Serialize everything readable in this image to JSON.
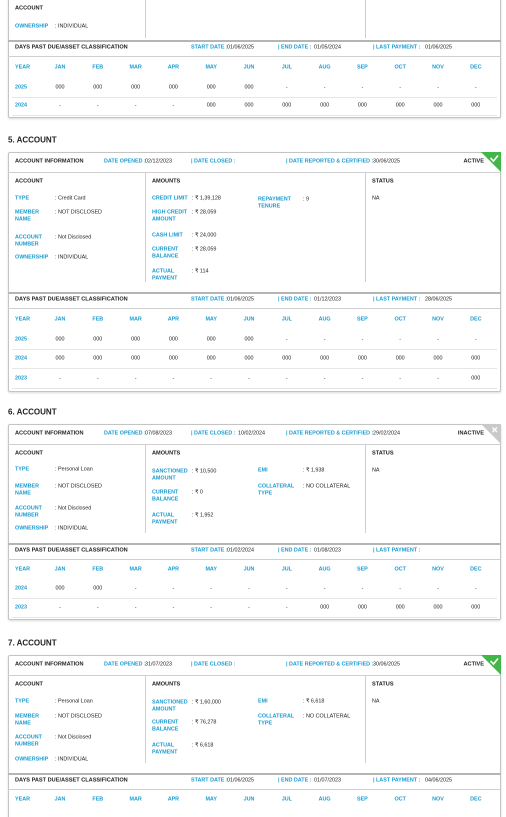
{
  "dpd_columns": [
    "YEAR",
    "JAN",
    "FEB",
    "MAR",
    "APR",
    "MAY",
    "JUN",
    "JUL",
    "AUG",
    "SEP",
    "OCT",
    "NOV",
    "DEC"
  ],
  "partial_account": {
    "columns": {
      "account": "ACCOUNT"
    },
    "account_fields": [
      {
        "label": "OWNERSHIP",
        "value": ": INDIVIDUAL"
      }
    ],
    "dpd": {
      "heading": "DAYS PAST DUE/ASSET CLASSIFICATION",
      "start_label": "START DATE :",
      "start": "01/06/2025",
      "end_label": "| END DATE :",
      "end": "01/05/2024",
      "last_label": "| LAST PAYMENT :",
      "last": "01/06/2025",
      "rows": [
        [
          "2025",
          "000",
          "000",
          "000",
          "000",
          "000",
          "000",
          "-",
          "-",
          "-",
          "-",
          "-",
          "-"
        ],
        [
          "2024",
          "-",
          "-",
          "-",
          "-",
          "000",
          "000",
          "000",
          "000",
          "000",
          "000",
          "000",
          "000"
        ]
      ]
    }
  },
  "accounts": [
    {
      "title": "5. ACCOUNT",
      "info": {
        "heading": "ACCOUNT INFORMATION",
        "opened_label": "DATE OPENED :",
        "opened": "02/12/2023",
        "closed_label": "| DATE CLOSED :",
        "reported_label": "| DATE REPORTED & CERTIFIED :",
        "reported": "30/06/2025",
        "badge": "ACTIVE"
      },
      "columns": {
        "account": "ACCOUNT",
        "amounts": "AMOUNTS",
        "status": "STATUS"
      },
      "account_fields": [
        {
          "label": "TYPE",
          "value": ": Credit Card"
        },
        {
          "label": "MEMBER\nNAME",
          "value": ": NOT DISCLOSED"
        },
        {
          "label": "ACCOUNT\nNUMBER",
          "value": ": Not Disclosed"
        },
        {
          "label": "OWNERSHIP",
          "value": ": INDIVIDUAL"
        }
      ],
      "amount_fields": [
        {
          "label": "CREDIT LIMIT",
          "value": ": ₹ 1,39,128"
        },
        {
          "label": "HIGH CREDIT\nAMOUNT",
          "value": ": ₹ 28,059"
        },
        {
          "label": "CASH LIMIT",
          "value": ": ₹ 24,000"
        },
        {
          "label": "CURRENT\nBALANCE",
          "value": ": ₹ 28,059"
        },
        {
          "label": "ACTUAL\nPAYMENT",
          "value": ": ₹ 114"
        }
      ],
      "side_fields": [
        {
          "label": "REPAYMENT\nTENURE",
          "value": ": 9"
        }
      ],
      "status": "NA",
      "dpd": {
        "heading": "DAYS PAST DUE/ASSET CLASSIFICATION",
        "start_label": "START DATE :",
        "start": "01/06/2025",
        "end_label": "| END DATE :",
        "end": "01/12/2023",
        "last_label": "| LAST PAYMENT :",
        "last": "28/06/2025",
        "rows": [
          [
            "2025",
            "000",
            "000",
            "000",
            "000",
            "000",
            "000",
            "-",
            "-",
            "-",
            "-",
            "-",
            "-"
          ],
          [
            "2024",
            "000",
            "000",
            "000",
            "000",
            "000",
            "000",
            "000",
            "000",
            "000",
            "000",
            "000",
            "000"
          ],
          [
            "2023",
            "-",
            "-",
            "-",
            "-",
            "-",
            "-",
            "-",
            "-",
            "-",
            "-",
            "-",
            "000"
          ]
        ]
      }
    },
    {
      "title": "6. ACCOUNT",
      "info": {
        "heading": "ACCOUNT INFORMATION",
        "opened_label": "DATE OPENED :",
        "opened": "07/08/2023",
        "closed_label": "| DATE CLOSED :",
        "closed": "10/02/2024",
        "reported_label": "| DATE REPORTED & CERTIFIED :",
        "reported": "29/02/2024",
        "badge": "INACTIVE"
      },
      "columns": {
        "account": "ACCOUNT",
        "amounts": "AMOUNTS",
        "status": "STATUS"
      },
      "account_fields": [
        {
          "label": "TYPE",
          "value": ": Personal Loan"
        },
        {
          "label": "MEMBER\nNAME",
          "value": ": NOT DISCLOSED"
        },
        {
          "label": "ACCOUNT\nNUMBER",
          "value": ": Not Disclosed"
        },
        {
          "label": "OWNERSHIP",
          "value": ": INDIVIDUAL"
        }
      ],
      "amount_fields": [
        {
          "label": "SANCTIONED\nAMOUNT",
          "value": ": ₹ 10,500"
        },
        {
          "label": "CURRENT\nBALANCE",
          "value": ": ₹ 0"
        },
        {
          "label": "ACTUAL\nPAYMENT",
          "value": ": ₹ 1,952"
        }
      ],
      "side_fields": [
        {
          "label": "EMI",
          "value": ": ₹ 1,938"
        },
        {
          "label": "COLLATERAL\nTYPE",
          "value": ": NO COLLATERAL"
        }
      ],
      "status": "NA",
      "dpd": {
        "heading": "DAYS PAST DUE/ASSET CLASSIFICATION",
        "start_label": "START DATE :",
        "start": "01/02/2024",
        "end_label": "| END DATE :",
        "end": "01/08/2023",
        "last_label": "| LAST PAYMENT :",
        "rows": [
          [
            "2024",
            "000",
            "000",
            "-",
            "-",
            "-",
            "-",
            "-",
            "-",
            "-",
            "-",
            "-",
            "-"
          ],
          [
            "2023",
            "-",
            "-",
            "-",
            "-",
            "-",
            "-",
            "-",
            "000",
            "000",
            "000",
            "000",
            "000"
          ]
        ]
      }
    },
    {
      "title": "7. ACCOUNT",
      "info": {
        "heading": "ACCOUNT INFORMATION",
        "opened_label": "DATE OPENED :",
        "opened": "31/07/2023",
        "closed_label": "| DATE CLOSED :",
        "reported_label": "| DATE REPORTED & CERTIFIED :",
        "reported": "30/06/2025",
        "badge": "ACTIVE"
      },
      "columns": {
        "account": "ACCOUNT",
        "amounts": "AMOUNTS",
        "status": "STATUS"
      },
      "account_fields": [
        {
          "label": "TYPE",
          "value": ": Personal Loan"
        },
        {
          "label": "MEMBER\nNAME",
          "value": ": NOT DISCLOSED"
        },
        {
          "label": "ACCOUNT\nNUMBER",
          "value": ": Not Disclosed"
        },
        {
          "label": "OWNERSHIP",
          "value": ": INDIVIDUAL"
        }
      ],
      "amount_fields": [
        {
          "label": "SANCTIONED\nAMOUNT",
          "value": ": ₹ 1,60,000"
        },
        {
          "label": "CURRENT\nBALANCE",
          "value": ": ₹ 76,278"
        },
        {
          "label": "ACTUAL\nPAYMENT",
          "value": ": ₹ 6,618"
        }
      ],
      "side_fields": [
        {
          "label": "EMI",
          "value": ": ₹ 6,618"
        },
        {
          "label": "COLLATERAL\nTYPE",
          "value": ": NO COLLATERAL"
        }
      ],
      "status": "NA",
      "dpd": {
        "heading": "DAYS PAST DUE/ASSET CLASSIFICATION",
        "start_label": "START DATE :",
        "start": "01/06/2025",
        "end_label": "| END DATE :",
        "end": "01/07/2023",
        "last_label": "| LAST PAYMENT :",
        "last": "04/06/2025"
      }
    }
  ]
}
